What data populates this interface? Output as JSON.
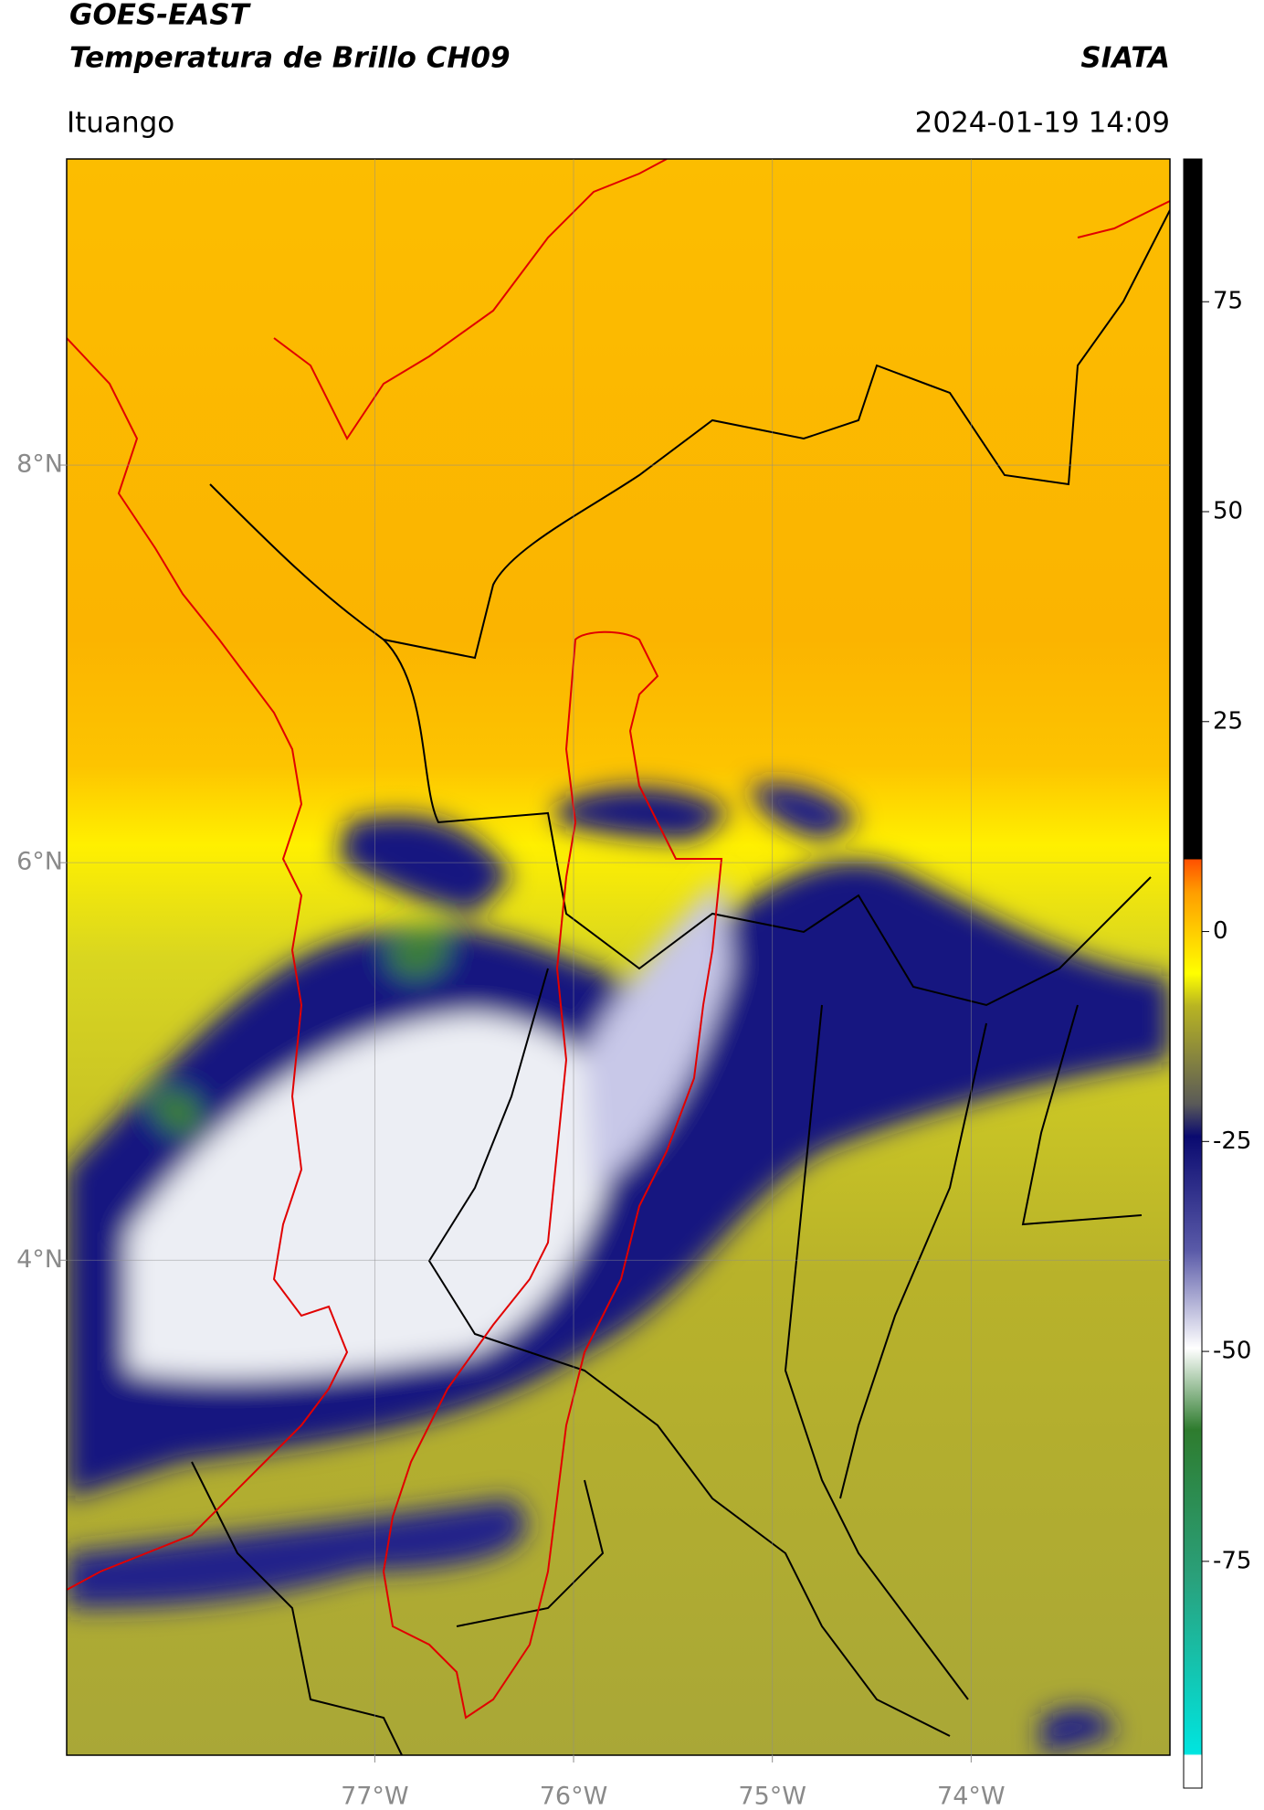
{
  "header": {
    "title": "GOES-EAST",
    "subtitle": "Temperatura de Brillo CH09",
    "source": "SIATA",
    "location": "Ituango",
    "datetime": "2024-01-19 14:09"
  },
  "map": {
    "xlim": [
      -78.55,
      -73.0
    ],
    "ylim": [
      1.51,
      9.54
    ],
    "xticks": [
      {
        "value": -77,
        "label": "77°W"
      },
      {
        "value": -76,
        "label": "76°W"
      },
      {
        "value": -75,
        "label": "75°W"
      },
      {
        "value": -74,
        "label": "74°W"
      }
    ],
    "yticks": [
      {
        "value": 8,
        "label": "8°N"
      },
      {
        "value": 6,
        "label": "6°N"
      },
      {
        "value": 4,
        "label": "4°N"
      }
    ],
    "grid": true
  },
  "colorbar": {
    "lim": [
      -102,
      92
    ],
    "ticks": [
      75,
      50,
      25,
      0,
      -25,
      -50,
      -75
    ]
  }
}
